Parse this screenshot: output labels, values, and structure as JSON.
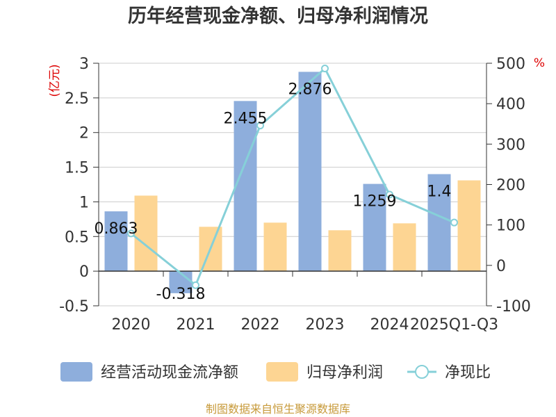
{
  "chart_data": {
    "type": "bar",
    "title": "历年经营现金净额、归母净利润情况",
    "categories": [
      "2020",
      "2021",
      "2022",
      "2023",
      "2024",
      "2025Q1-Q3"
    ],
    "series": [
      {
        "name": "经营活动现金流净额",
        "kind": "bar",
        "axis": "left",
        "color": "#8eaedc",
        "values": [
          0.863,
          -0.318,
          2.455,
          2.876,
          1.259,
          1.4
        ],
        "labels": [
          "0.863",
          "-0.318",
          "2.455",
          "2.876",
          "1.259",
          "1.4"
        ]
      },
      {
        "name": "归母净利润",
        "kind": "bar",
        "axis": "left",
        "color": "#fdd593",
        "values": [
          1.09,
          0.64,
          0.7,
          0.59,
          0.69,
          1.31
        ]
      },
      {
        "name": "净现比",
        "kind": "line",
        "axis": "right",
        "color": "#86d0d8",
        "values": [
          79,
          -49,
          346,
          487,
          175,
          106
        ]
      }
    ],
    "y_left": {
      "unit": "(亿元)",
      "min": -0.5,
      "max": 3,
      "ticks": [
        "-0.5",
        "0",
        "0.5",
        "1",
        "1.5",
        "2",
        "2.5",
        "3"
      ]
    },
    "y_right": {
      "unit": "%",
      "min": -100,
      "max": 500,
      "ticks": [
        "-100",
        "0",
        "100",
        "200",
        "300",
        "400",
        "500"
      ]
    },
    "unit_color": "#dd0000",
    "legend_position": "bottom",
    "source": "制图数据来自恒生聚源数据库",
    "source_color": "#c79a3a"
  }
}
